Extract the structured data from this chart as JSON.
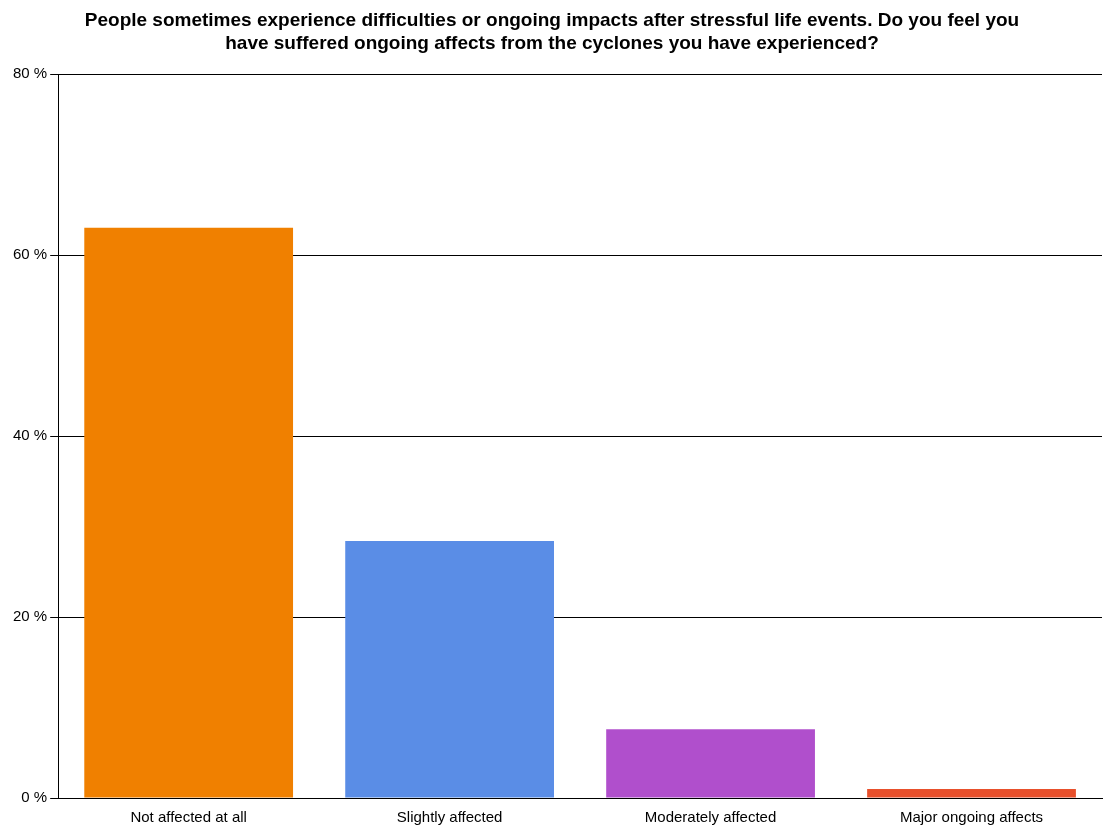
{
  "chart_data": {
    "type": "bar",
    "title": "People sometimes experience difficulties or ongoing impacts after stressful life events. Do you feel you have suffered ongoing affects from the cyclones you have experienced?",
    "categories": [
      "Not affected at all",
      "Slightly affected",
      "Moderately affected",
      "Major ongoing affects"
    ],
    "values": [
      63.0,
      28.4,
      7.6,
      1.0
    ],
    "colors": [
      "#f08000",
      "#5a8de6",
      "#b04fcc",
      "#e8502c"
    ],
    "ylim": [
      0,
      80
    ],
    "yticks": [
      {
        "value": 0,
        "label": "0 %"
      },
      {
        "value": 20,
        "label": "20 %"
      },
      {
        "value": 40,
        "label": "40 %"
      },
      {
        "value": 60,
        "label": "60 %"
      },
      {
        "value": 80,
        "label": "80 %"
      }
    ],
    "grid": "y",
    "legend": false
  }
}
